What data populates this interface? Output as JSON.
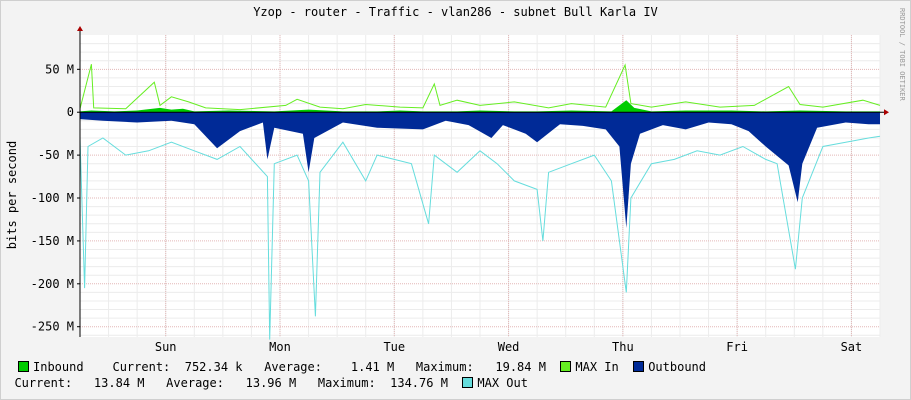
{
  "title": "Yzop - router - Traffic - vlan286 - subnet Bull Karla IV",
  "watermark": "RRDTOOL / TOBI OETIKER",
  "chart_data": {
    "type": "area",
    "title": "Yzop - router - Traffic - vlan286 - subnet Bull Karla IV",
    "ylabel": "bits per second",
    "xlabel": "",
    "ylim": [
      -262,
      90
    ],
    "yticks": [
      {
        "value": 50,
        "label": "50 M"
      },
      {
        "value": 0,
        "label": "0"
      },
      {
        "value": -50,
        "label": "-50 M"
      },
      {
        "value": -100,
        "label": "-100 M"
      },
      {
        "value": -150,
        "label": "-150 M"
      },
      {
        "value": -200,
        "label": "-200 M"
      },
      {
        "value": -250,
        "label": "-250 M"
      }
    ],
    "xlim": [
      0,
      7
    ],
    "xticks": [
      {
        "value": 0.75,
        "label": "Sun"
      },
      {
        "value": 1.75,
        "label": "Mon"
      },
      {
        "value": 2.75,
        "label": "Tue"
      },
      {
        "value": 3.75,
        "label": "Wed"
      },
      {
        "value": 4.75,
        "label": "Thu"
      },
      {
        "value": 5.75,
        "label": "Fri"
      },
      {
        "value": 6.75,
        "label": "Sat"
      }
    ],
    "series": [
      {
        "name": "Inbound",
        "color": "#00cc00",
        "points": [
          [
            0,
            1
          ],
          [
            0.1,
            2
          ],
          [
            0.3,
            1
          ],
          [
            0.5,
            2
          ],
          [
            0.7,
            5
          ],
          [
            0.8,
            3
          ],
          [
            0.9,
            4
          ],
          [
            1.0,
            1
          ],
          [
            1.3,
            2
          ],
          [
            1.7,
            1
          ],
          [
            2.0,
            3
          ],
          [
            2.3,
            1
          ],
          [
            2.6,
            1
          ],
          [
            2.8,
            2
          ],
          [
            3.0,
            1
          ],
          [
            3.3,
            1
          ],
          [
            3.5,
            2
          ],
          [
            3.8,
            1
          ],
          [
            4.0,
            1
          ],
          [
            4.3,
            2
          ],
          [
            4.65,
            1
          ],
          [
            4.78,
            14
          ],
          [
            4.85,
            5
          ],
          [
            5.0,
            1
          ],
          [
            5.3,
            2
          ],
          [
            5.7,
            2
          ],
          [
            6.0,
            1
          ],
          [
            6.3,
            2
          ],
          [
            6.7,
            1
          ],
          [
            7,
            1
          ]
        ]
      },
      {
        "name": "MAX In",
        "color": "#66ee22",
        "points": [
          [
            0,
            4
          ],
          [
            0.1,
            56
          ],
          [
            0.12,
            5
          ],
          [
            0.4,
            4
          ],
          [
            0.65,
            35
          ],
          [
            0.7,
            8
          ],
          [
            0.8,
            18
          ],
          [
            0.95,
            12
          ],
          [
            1.1,
            5
          ],
          [
            1.4,
            3
          ],
          [
            1.8,
            8
          ],
          [
            1.9,
            15
          ],
          [
            2.1,
            6
          ],
          [
            2.3,
            4
          ],
          [
            2.5,
            9
          ],
          [
            2.8,
            6
          ],
          [
            3.0,
            5
          ],
          [
            3.1,
            33
          ],
          [
            3.15,
            8
          ],
          [
            3.3,
            14
          ],
          [
            3.5,
            8
          ],
          [
            3.8,
            12
          ],
          [
            4.1,
            5
          ],
          [
            4.3,
            10
          ],
          [
            4.6,
            6
          ],
          [
            4.77,
            55
          ],
          [
            4.82,
            10
          ],
          [
            5.0,
            6
          ],
          [
            5.3,
            12
          ],
          [
            5.6,
            6
          ],
          [
            5.9,
            8
          ],
          [
            6.2,
            30
          ],
          [
            6.3,
            9
          ],
          [
            6.5,
            6
          ],
          [
            6.85,
            14
          ],
          [
            7,
            8
          ]
        ]
      },
      {
        "name": "Outbound",
        "color": "#002a97",
        "points": [
          [
            0,
            -8
          ],
          [
            0.2,
            -10
          ],
          [
            0.5,
            -12
          ],
          [
            0.8,
            -10
          ],
          [
            1.0,
            -14
          ],
          [
            1.2,
            -42
          ],
          [
            1.4,
            -22
          ],
          [
            1.6,
            -12
          ],
          [
            1.64,
            -55
          ],
          [
            1.7,
            -18
          ],
          [
            1.95,
            -25
          ],
          [
            2.0,
            -70
          ],
          [
            2.05,
            -30
          ],
          [
            2.3,
            -12
          ],
          [
            2.6,
            -18
          ],
          [
            3.0,
            -20
          ],
          [
            3.2,
            -10
          ],
          [
            3.4,
            -15
          ],
          [
            3.6,
            -30
          ],
          [
            3.7,
            -15
          ],
          [
            3.9,
            -25
          ],
          [
            4.0,
            -35
          ],
          [
            4.2,
            -14
          ],
          [
            4.4,
            -16
          ],
          [
            4.6,
            -20
          ],
          [
            4.72,
            -40
          ],
          [
            4.78,
            -135
          ],
          [
            4.82,
            -60
          ],
          [
            4.9,
            -25
          ],
          [
            5.1,
            -15
          ],
          [
            5.3,
            -20
          ],
          [
            5.5,
            -12
          ],
          [
            5.7,
            -14
          ],
          [
            5.85,
            -22
          ],
          [
            6.0,
            -40
          ],
          [
            6.2,
            -62
          ],
          [
            6.28,
            -105
          ],
          [
            6.32,
            -60
          ],
          [
            6.45,
            -18
          ],
          [
            6.7,
            -12
          ],
          [
            6.9,
            -14
          ],
          [
            7,
            -14
          ]
        ]
      },
      {
        "name": "MAX Out",
        "color": "#66dddd",
        "points": [
          [
            0,
            -30
          ],
          [
            0.04,
            -205
          ],
          [
            0.07,
            -40
          ],
          [
            0.2,
            -30
          ],
          [
            0.4,
            -50
          ],
          [
            0.6,
            -45
          ],
          [
            0.8,
            -35
          ],
          [
            1.0,
            -45
          ],
          [
            1.2,
            -55
          ],
          [
            1.4,
            -40
          ],
          [
            1.64,
            -75
          ],
          [
            1.66,
            -265
          ],
          [
            1.7,
            -60
          ],
          [
            1.9,
            -50
          ],
          [
            2.0,
            -80
          ],
          [
            2.06,
            -238
          ],
          [
            2.1,
            -70
          ],
          [
            2.3,
            -35
          ],
          [
            2.5,
            -80
          ],
          [
            2.6,
            -50
          ],
          [
            2.9,
            -60
          ],
          [
            3.05,
            -130
          ],
          [
            3.1,
            -50
          ],
          [
            3.3,
            -70
          ],
          [
            3.5,
            -45
          ],
          [
            3.65,
            -60
          ],
          [
            3.8,
            -80
          ],
          [
            4.0,
            -90
          ],
          [
            4.05,
            -150
          ],
          [
            4.1,
            -70
          ],
          [
            4.3,
            -60
          ],
          [
            4.5,
            -50
          ],
          [
            4.65,
            -80
          ],
          [
            4.78,
            -210
          ],
          [
            4.82,
            -100
          ],
          [
            5.0,
            -60
          ],
          [
            5.2,
            -55
          ],
          [
            5.4,
            -45
          ],
          [
            5.6,
            -50
          ],
          [
            5.8,
            -40
          ],
          [
            6.0,
            -55
          ],
          [
            6.1,
            -60
          ],
          [
            6.26,
            -183
          ],
          [
            6.32,
            -100
          ],
          [
            6.5,
            -40
          ],
          [
            6.7,
            -35
          ],
          [
            6.9,
            -30
          ],
          [
            7,
            -28
          ]
        ]
      }
    ]
  },
  "legend": {
    "line1": [
      {
        "kind": "swatch",
        "color": "#00cc00"
      },
      {
        "kind": "text",
        "text": "Inbound    Current:  752.34 k   Average:    1.41 M   Maximum:   19.84 M  "
      },
      {
        "kind": "swatch",
        "color": "#66ee22"
      },
      {
        "kind": "text",
        "text": "MAX In  "
      },
      {
        "kind": "swatch",
        "color": "#002a97"
      },
      {
        "kind": "text",
        "text": "Outbound"
      }
    ],
    "line2": [
      {
        "kind": "text",
        "text": "  Current:   13.84 M   Average:   13.96 M   Maximum:  134.76 M  "
      },
      {
        "kind": "swatch",
        "color": "#66dddd"
      },
      {
        "kind": "text",
        "text": "MAX Out"
      }
    ]
  }
}
